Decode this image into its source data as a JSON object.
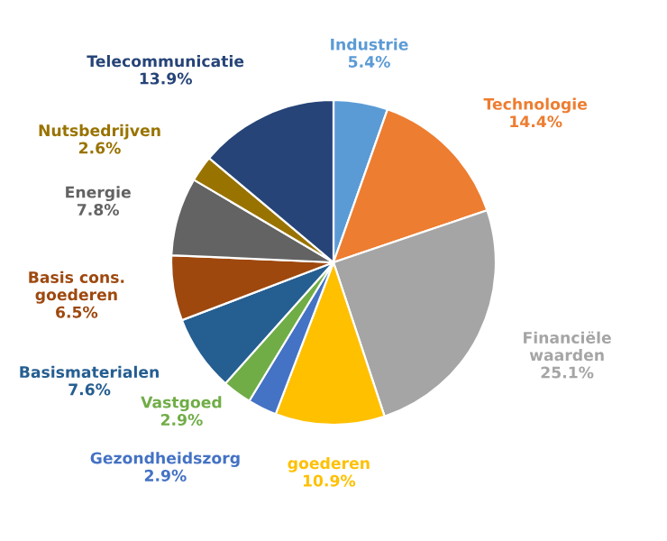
{
  "chart_data": {
    "type": "pie",
    "categories": [
      "Industrie",
      "Technologie",
      "Financiële\nwaarden",
      "goederen",
      "Gezondheidszorg",
      "Vastgoed",
      "Basismaterialen",
      "Basis cons.\ngoederen",
      "Energie",
      "Nutsbedrijven",
      "Telecommunicatie"
    ],
    "values": [
      5.4,
      14.4,
      25.1,
      10.9,
      2.9,
      2.9,
      7.6,
      6.5,
      7.8,
      2.6,
      13.9
    ],
    "value_labels": [
      "5.4%",
      "14.4%",
      "25.1%",
      "10.9%",
      "2.9%",
      "2.9%",
      "7.6%",
      "6.5%",
      "7.8%",
      "2.6%",
      "13.9%"
    ],
    "colors": [
      "#5b9bd5",
      "#ed7d31",
      "#a5a5a5",
      "#ffc000",
      "#4472c4",
      "#70ad47",
      "#255e91",
      "#9e480e",
      "#636363",
      "#997300",
      "#264478"
    ]
  }
}
